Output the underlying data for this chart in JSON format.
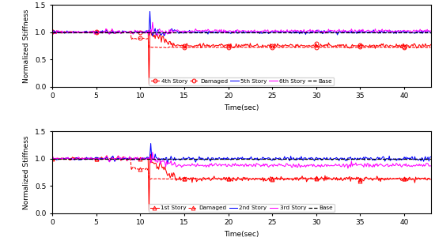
{
  "xlabel": "Time(sec)",
  "ylabel": "Normalized Stiffness",
  "xlim": [
    0,
    43
  ],
  "ylim": [
    0,
    1.5
  ],
  "yticks": [
    0,
    0.5,
    1.0,
    1.5
  ],
  "xticks": [
    0,
    5,
    10,
    15,
    20,
    25,
    30,
    35,
    40
  ],
  "color_red": "#ff0000",
  "color_blue": "#0000ff",
  "color_magenta": "#ff00ff",
  "color_base": "#000000",
  "damage_time": 11.0,
  "legend_top": [
    "4th Story",
    "Damaged",
    "5th Story",
    "6th Story",
    "Base"
  ],
  "legend_bottom": [
    "1st Story",
    "Damaged",
    "2nd Story",
    "3rd Story",
    "Base"
  ],
  "fig_width": 5.5,
  "fig_height": 3.1,
  "dpi": 100
}
